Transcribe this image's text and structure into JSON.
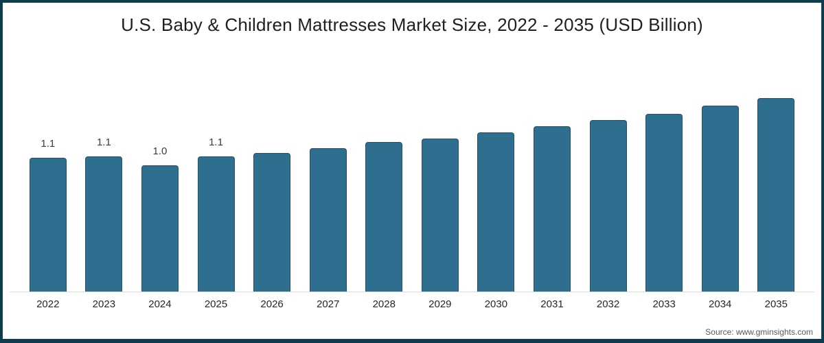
{
  "chart_data": {
    "type": "bar",
    "title": "U.S. Baby & Children Mattresses Market Size, 2022 - 2035 (USD Billion)",
    "categories": [
      "2022",
      "2023",
      "2024",
      "2025",
      "2026",
      "2027",
      "2028",
      "2029",
      "2030",
      "2031",
      "2032",
      "2033",
      "2034",
      "2035"
    ],
    "values": [
      1.1,
      1.11,
      1.04,
      1.11,
      1.14,
      1.18,
      1.23,
      1.26,
      1.31,
      1.36,
      1.41,
      1.46,
      1.53,
      1.59
    ],
    "bar_labels": [
      "1.1",
      "1.1",
      "1.0",
      "1.1",
      "",
      "",
      "",
      "",
      "",
      "",
      "",
      "",
      "",
      ""
    ],
    "xlabel": "",
    "ylabel": "",
    "ylim": [
      0,
      1.7
    ],
    "grid": false,
    "legend_position": "none",
    "bar_color": "#2e6e8e",
    "bar_edge_color": "#215169"
  },
  "source": "Source: www.gminsights.com",
  "colors": {
    "frame_border": "#0f3c4c",
    "axis_line": "#d9dde2",
    "title_text": "#1f1f1f",
    "tick_text": "#262626",
    "source_text": "#595959"
  }
}
